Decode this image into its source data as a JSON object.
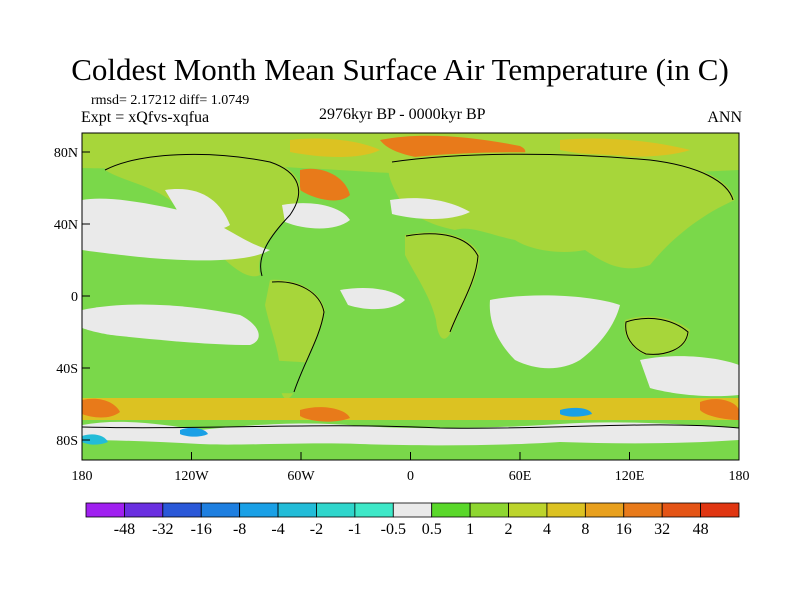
{
  "header": {
    "title": "Coldest Month Mean Surface Air Temperature (in C)",
    "stats": "rmsd= 2.17212 diff= 1.0749",
    "experiment": "Expt = xQfvs-xqfua",
    "period": "2976kyr BP - 0000kyr BP",
    "season": "ANN"
  },
  "map": {
    "y_ticks": [
      "80N",
      "40N",
      "0",
      "40S",
      "80S"
    ],
    "x_ticks": [
      "180",
      "120W",
      "60W",
      "0",
      "60E",
      "120E",
      "180"
    ],
    "lon_range": [
      -180,
      180
    ],
    "lat_range": [
      -90,
      90
    ]
  },
  "colorbar": {
    "labels": [
      "-48",
      "-32",
      "-16",
      "-8",
      "-4",
      "-2",
      "-1",
      "-0.5",
      "0.5",
      "1",
      "2",
      "4",
      "8",
      "16",
      "32",
      "48"
    ],
    "colors": [
      "#a020f0",
      "#6a2fe0",
      "#2a58d8",
      "#1e7fe0",
      "#1aa0e6",
      "#22bcd8",
      "#2fd6cc",
      "#3ee8c8",
      "#eaeaea",
      "#5ad82a",
      "#8ed630",
      "#bcd42c",
      "#dcc222",
      "#e8a01e",
      "#e87a1a",
      "#e45416",
      "#e03612"
    ]
  },
  "palette": {
    "ocean": "#7ad84a",
    "land": "#a7d63a",
    "neutral": "#eaeaea",
    "warm": "#dcc222",
    "hot": "#e87a1a"
  }
}
